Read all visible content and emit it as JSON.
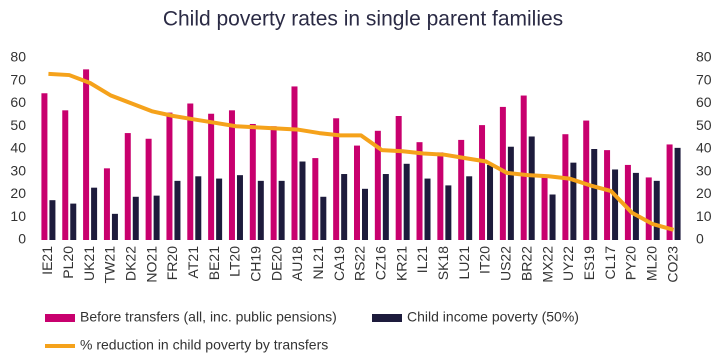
{
  "chart_data": {
    "type": "bar",
    "title": "Child poverty rates in single parent families",
    "categories": [
      "IE21",
      "PL20",
      "UK21",
      "TW21",
      "DK22",
      "NO21",
      "FR20",
      "AT21",
      "BE21",
      "LT20",
      "CH19",
      "DE20",
      "AU18",
      "NL21",
      "CA19",
      "RS22",
      "CZ16",
      "KR21",
      "IL21",
      "SK18",
      "LU21",
      "IT20",
      "US22",
      "BR22",
      "MX22",
      "UY22",
      "ES19",
      "CL17",
      "PY20",
      "ML20",
      "CO23"
    ],
    "series": [
      {
        "name": "Before transfers (all, inc. public pensions)",
        "color": "#c8006e",
        "values": [
          64.5,
          57,
          75,
          31.5,
          47,
          44.5,
          56,
          60,
          55.5,
          57,
          51,
          50,
          67.5,
          36,
          53.5,
          41.5,
          48,
          54.5,
          43,
          38.5,
          44,
          50.5,
          58.5,
          63.5,
          27.5,
          46.5,
          52.5,
          39.5,
          33,
          27.5,
          42
        ]
      },
      {
        "name": "Child income poverty (50%)",
        "color": "#1d1b3c",
        "values": [
          17.5,
          16,
          23,
          11.5,
          19,
          19.5,
          26,
          28,
          27,
          28.5,
          26,
          26,
          34.5,
          19,
          29,
          22.5,
          29,
          33.5,
          27,
          24,
          28,
          33,
          41,
          45.5,
          20,
          34,
          40,
          31,
          29.5,
          26,
          40.5
        ]
      },
      {
        "name": "% reduction in child poverty by transfers",
        "color": "#f5a21b",
        "axis": "y2",
        "type": "line",
        "values": [
          73,
          72.5,
          69,
          63.5,
          60,
          56.5,
          54.5,
          53,
          51.5,
          50,
          49.5,
          49,
          48.5,
          47,
          46,
          46,
          39.5,
          39,
          38,
          37.5,
          36,
          34.5,
          29.5,
          28.5,
          28,
          27,
          24,
          21.5,
          12,
          7,
          4.5
        ]
      }
    ],
    "ylim": [
      0,
      80
    ],
    "yticks": [
      0,
      10,
      20,
      30,
      40,
      50,
      60,
      70,
      80
    ],
    "y2lim": [
      0,
      80
    ],
    "y2ticks": [
      0,
      10,
      20,
      30,
      40,
      50,
      60,
      70,
      80
    ],
    "grid": false
  }
}
